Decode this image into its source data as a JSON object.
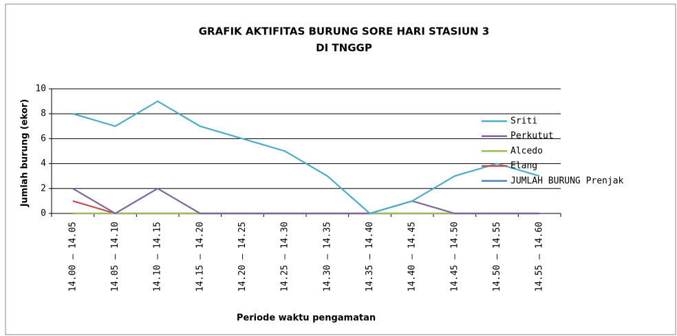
{
  "chart_data": {
    "type": "line",
    "title_lines": [
      "GRAFIK AKTIFITAS BURUNG SORE HARI STASIUN 3",
      "DI TNGGP"
    ],
    "y_label": "Jumlah burung (ekor)",
    "x_label": "Periode waktu pengamatan",
    "categories": [
      "14.00 – 14.05",
      "14.05 – 14.10",
      "14.10 – 14.15",
      "14.15 – 14.20",
      "14.20 – 14.25",
      "14.25 – 14.30",
      "14.30 – 14.35",
      "14.35 – 14.40",
      "14.40 – 14.45",
      "14.45 – 14.50",
      "14.50 – 14.55",
      "14.55 – 14.60"
    ],
    "series": [
      {
        "name": "Sriti",
        "color": "#4bacc6",
        "values": [
          8,
          7,
          9,
          7,
          6,
          5,
          3,
          0,
          1,
          3,
          4,
          3
        ]
      },
      {
        "name": "Perkutut",
        "color": "#8064a2",
        "values": [
          2,
          0,
          2,
          0,
          0,
          0,
          0,
          0,
          1,
          0,
          0,
          0
        ]
      },
      {
        "name": "Alcedo",
        "color": "#9bbb59",
        "values": [
          0,
          0,
          0,
          0,
          0,
          0,
          0,
          0,
          0,
          0,
          0,
          0
        ]
      },
      {
        "name": "Elang",
        "color": "#c0504d",
        "values": [
          1,
          0,
          0,
          0,
          0,
          0,
          0,
          0,
          0,
          0,
          0,
          0
        ]
      },
      {
        "name": "JUMLAH BURUNG Prenjak",
        "color": "#4f81bd",
        "values": [
          0,
          0,
          0,
          0,
          0,
          0,
          0,
          0,
          0,
          0,
          0,
          0
        ]
      }
    ],
    "ylim": [
      0,
      10
    ],
    "yticks": [
      0,
      2,
      4,
      6,
      8,
      10
    ],
    "grid": true,
    "legend": "right"
  }
}
